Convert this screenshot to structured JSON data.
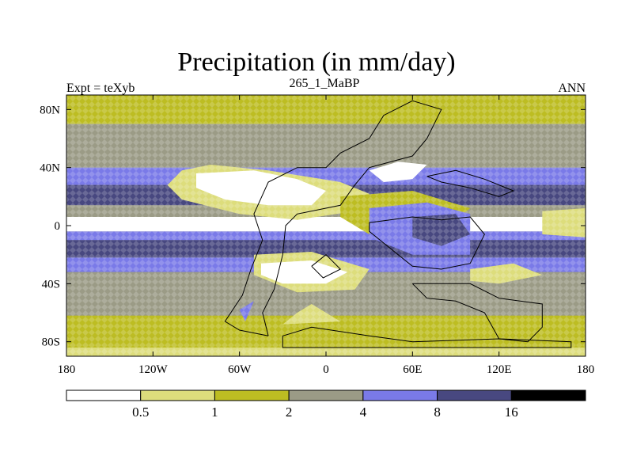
{
  "title": "Precipitation (in mm/day)",
  "left_string": "Expt = teXyb",
  "center_string": "265_1_MaBP",
  "right_string": "ANN",
  "chart_data": {
    "type": "heatmap",
    "title": "Precipitation (in mm/day)",
    "subtitle": "265_1_MaBP",
    "annotations": [
      "Expt = teXyb",
      "ANN"
    ],
    "xlim": [
      -180,
      180
    ],
    "ylim": [
      -90,
      90
    ],
    "x_ticks": [
      {
        "value": -180,
        "label": "180"
      },
      {
        "value": -120,
        "label": "120W"
      },
      {
        "value": -60,
        "label": "60W"
      },
      {
        "value": 0,
        "label": "0"
      },
      {
        "value": 60,
        "label": "60E"
      },
      {
        "value": 120,
        "label": "120E"
      },
      {
        "value": 180,
        "label": "180"
      }
    ],
    "y_ticks": [
      {
        "value": 80,
        "label": "80N"
      },
      {
        "value": 40,
        "label": "40N"
      },
      {
        "value": 0,
        "label": "0"
      },
      {
        "value": -40,
        "label": "40S"
      },
      {
        "value": -80,
        "label": "80S"
      }
    ],
    "contour_levels": [
      "0.5",
      "1",
      "2",
      "4",
      "8",
      "16"
    ],
    "colorbar_colors": [
      "#ffffff",
      "#dddd7c",
      "#bdbd22",
      "#9b9b86",
      "#7a7ae8",
      "#484880",
      "#000000"
    ],
    "zonal_bands": [
      {
        "lat_top": 90,
        "lat_bottom": 82,
        "level": 2
      },
      {
        "lat_top": 82,
        "lat_bottom": 70,
        "level": 2
      },
      {
        "lat_top": 70,
        "lat_bottom": 60,
        "level": 3
      },
      {
        "lat_top": 60,
        "lat_bottom": 40,
        "level": 3
      },
      {
        "lat_top": 40,
        "lat_bottom": 28,
        "level": 4
      },
      {
        "lat_top": 28,
        "lat_bottom": 14,
        "level": 5
      },
      {
        "lat_top": 14,
        "lat_bottom": 6,
        "level": 3
      },
      {
        "lat_top": 6,
        "lat_bottom": -4,
        "level": 0
      },
      {
        "lat_top": -4,
        "lat_bottom": -10,
        "level": 4
      },
      {
        "lat_top": -10,
        "lat_bottom": -22,
        "level": 5
      },
      {
        "lat_top": -22,
        "lat_bottom": -32,
        "level": 4
      },
      {
        "lat_top": -32,
        "lat_bottom": -62,
        "level": 3
      },
      {
        "lat_top": -62,
        "lat_bottom": -76,
        "level": 2
      },
      {
        "lat_top": -76,
        "lat_bottom": -84,
        "level": 2
      },
      {
        "lat_top": -84,
        "lat_bottom": -90,
        "level": 1
      }
    ],
    "regions": [
      {
        "level": 1,
        "points": [
          [
            -100,
            38
          ],
          [
            -80,
            42
          ],
          [
            -40,
            38
          ],
          [
            10,
            30
          ],
          [
            30,
            22
          ],
          [
            20,
            10
          ],
          [
            -20,
            4
          ],
          [
            -60,
            8
          ],
          [
            -100,
            18
          ],
          [
            -110,
            28
          ]
        ]
      },
      {
        "level": 0,
        "points": [
          [
            -90,
            36
          ],
          [
            -50,
            38
          ],
          [
            -20,
            32
          ],
          [
            0,
            24
          ],
          [
            -10,
            14
          ],
          [
            -40,
            14
          ],
          [
            -70,
            18
          ],
          [
            -90,
            26
          ]
        ]
      },
      {
        "level": 0,
        "points": [
          [
            30,
            38
          ],
          [
            50,
            44
          ],
          [
            70,
            42
          ],
          [
            60,
            32
          ],
          [
            40,
            30
          ]
        ]
      },
      {
        "level": 1,
        "points": [
          [
            -50,
            -20
          ],
          [
            -10,
            -18
          ],
          [
            30,
            -30
          ],
          [
            20,
            -44
          ],
          [
            -20,
            -46
          ],
          [
            -50,
            -34
          ]
        ]
      },
      {
        "level": 0,
        "points": [
          [
            -45,
            -26
          ],
          [
            -10,
            -24
          ],
          [
            15,
            -32
          ],
          [
            0,
            -40
          ],
          [
            -30,
            -40
          ],
          [
            -45,
            -34
          ]
        ]
      },
      {
        "level": 2,
        "points": [
          [
            10,
            20
          ],
          [
            60,
            24
          ],
          [
            100,
            12
          ],
          [
            80,
            -4
          ],
          [
            30,
            -6
          ],
          [
            10,
            6
          ]
        ]
      },
      {
        "level": 4,
        "points": [
          [
            30,
            12
          ],
          [
            70,
            16
          ],
          [
            100,
            8
          ],
          [
            100,
            -20
          ],
          [
            60,
            -20
          ],
          [
            30,
            -8
          ]
        ]
      },
      {
        "level": 5,
        "points": [
          [
            60,
            6
          ],
          [
            90,
            8
          ],
          [
            100,
            -6
          ],
          [
            80,
            -14
          ],
          [
            60,
            -8
          ]
        ]
      },
      {
        "level": 1,
        "points": [
          [
            100,
            -30
          ],
          [
            130,
            -26
          ],
          [
            150,
            -34
          ],
          [
            120,
            -40
          ],
          [
            100,
            -38
          ]
        ]
      },
      {
        "level": 0,
        "points": [
          [
            165,
            4
          ],
          [
            178,
            6
          ],
          [
            180,
            0
          ],
          [
            170,
            -4
          ]
        ]
      },
      {
        "level": 1,
        "points": [
          [
            150,
            10
          ],
          [
            180,
            12
          ],
          [
            180,
            -8
          ],
          [
            150,
            -6
          ]
        ]
      },
      {
        "level": 4,
        "points": [
          [
            -60,
            -58
          ],
          [
            -50,
            -52
          ],
          [
            -56,
            -66
          ]
        ]
      },
      {
        "level": 1,
        "points": [
          [
            -20,
            -60
          ],
          [
            -10,
            -54
          ],
          [
            10,
            -66
          ],
          [
            -30,
            -68
          ]
        ]
      }
    ],
    "continent_outlines": [
      [
        [
          -40,
          -76
        ],
        [
          -44,
          -60
        ],
        [
          -36,
          -44
        ],
        [
          -30,
          -20
        ],
        [
          -28,
          0
        ],
        [
          -20,
          8
        ],
        [
          10,
          14
        ],
        [
          20,
          28
        ],
        [
          30,
          40
        ],
        [
          60,
          48
        ],
        [
          70,
          60
        ],
        [
          80,
          80
        ],
        [
          60,
          86
        ],
        [
          40,
          76
        ],
        [
          30,
          60
        ],
        [
          10,
          50
        ],
        [
          0,
          40
        ],
        [
          -20,
          40
        ],
        [
          -40,
          30
        ],
        [
          -50,
          8
        ],
        [
          -44,
          -10
        ],
        [
          -52,
          -30
        ],
        [
          -58,
          -48
        ],
        [
          -70,
          -66
        ],
        [
          -60,
          -72
        ],
        [
          -40,
          -76
        ]
      ],
      [
        [
          -30,
          -76
        ],
        [
          -10,
          -70
        ],
        [
          30,
          -76
        ],
        [
          60,
          -80
        ],
        [
          120,
          -78
        ],
        [
          170,
          -80
        ],
        [
          170,
          -84
        ],
        [
          -30,
          -84
        ],
        [
          -30,
          -76
        ]
      ],
      [
        [
          30,
          2
        ],
        [
          60,
          6
        ],
        [
          80,
          4
        ],
        [
          100,
          6
        ],
        [
          110,
          -6
        ],
        [
          100,
          -26
        ],
        [
          80,
          -30
        ],
        [
          60,
          -28
        ],
        [
          40,
          -12
        ],
        [
          30,
          -4
        ],
        [
          30,
          2
        ]
      ],
      [
        [
          60,
          -40
        ],
        [
          100,
          -40
        ],
        [
          120,
          -50
        ],
        [
          150,
          -54
        ],
        [
          150,
          -70
        ],
        [
          140,
          -80
        ],
        [
          120,
          -78
        ],
        [
          110,
          -60
        ],
        [
          90,
          -52
        ],
        [
          70,
          -50
        ],
        [
          60,
          -40
        ]
      ],
      [
        [
          -10,
          -28
        ],
        [
          0,
          -20
        ],
        [
          10,
          -30
        ],
        [
          -2,
          -36
        ],
        [
          -10,
          -28
        ]
      ],
      [
        [
          70,
          34
        ],
        [
          90,
          38
        ],
        [
          110,
          32
        ],
        [
          130,
          24
        ],
        [
          120,
          20
        ],
        [
          100,
          26
        ],
        [
          80,
          30
        ],
        [
          70,
          34
        ]
      ]
    ]
  }
}
